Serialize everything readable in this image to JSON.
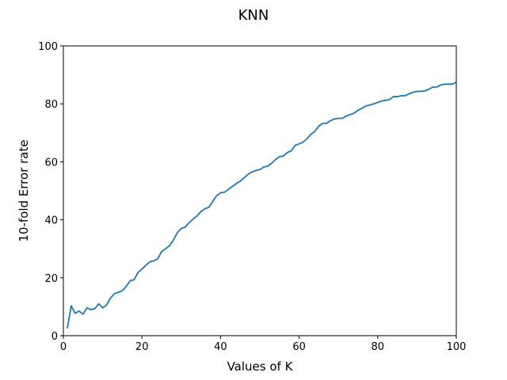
{
  "chart_data": {
    "type": "line",
    "title": "KNN",
    "xlabel": "Values of K",
    "ylabel": "10-fold Error rate",
    "xlim": [
      0,
      100
    ],
    "ylim": [
      0,
      100
    ],
    "xticks": [
      0,
      20,
      40,
      60,
      80,
      100
    ],
    "yticks": [
      0,
      20,
      40,
      60,
      80,
      100
    ],
    "grid": false,
    "series": [
      {
        "color": "#1f77b4",
        "x": [
          1,
          2,
          3,
          4,
          5,
          6,
          7,
          8,
          9,
          10,
          11,
          12,
          13,
          14,
          15,
          16,
          17,
          18,
          19,
          20,
          21,
          22,
          23,
          24,
          25,
          26,
          27,
          28,
          29,
          30,
          31,
          32,
          33,
          34,
          35,
          36,
          37,
          38,
          39,
          40,
          41,
          42,
          43,
          44,
          45,
          46,
          47,
          48,
          49,
          50,
          51,
          52,
          53,
          54,
          55,
          56,
          57,
          58,
          59,
          60,
          61,
          62,
          63,
          64,
          65,
          66,
          67,
          68,
          69,
          70,
          71,
          72,
          73,
          74,
          75,
          76,
          77,
          78,
          79,
          80,
          81,
          82,
          83,
          84,
          85,
          86,
          87,
          88,
          89,
          90,
          91,
          92,
          93,
          94,
          95,
          96,
          97,
          98,
          99,
          100
        ],
        "y": [
          2.5,
          10.3,
          7.7,
          8.5,
          7.4,
          9.6,
          9.0,
          9.3,
          11.0,
          9.6,
          10.6,
          13.0,
          14.5,
          15.0,
          15.5,
          17.0,
          19.0,
          19.3,
          21.8,
          23.0,
          24.3,
          25.5,
          25.8,
          26.5,
          29.0,
          30.0,
          31.0,
          33.0,
          35.5,
          37.0,
          37.5,
          39.0,
          40.2,
          41.3,
          42.8,
          43.8,
          44.3,
          46.3,
          48.3,
          49.3,
          49.5,
          50.5,
          51.5,
          52.5,
          53.3,
          54.5,
          55.7,
          56.5,
          57.0,
          57.3,
          58.2,
          58.5,
          59.5,
          60.8,
          61.8,
          62.0,
          63.2,
          63.8,
          65.7,
          66.2,
          66.8,
          68.0,
          69.5,
          70.5,
          72.3,
          73.3,
          73.3,
          74.2,
          74.8,
          75.0,
          75.0,
          75.8,
          76.3,
          76.8,
          77.8,
          78.5,
          79.3,
          79.6,
          80.0,
          80.5,
          81.0,
          81.2,
          81.5,
          82.5,
          82.5,
          82.8,
          82.8,
          83.5,
          84.0,
          84.3,
          84.3,
          84.5,
          85.0,
          85.8,
          85.8,
          86.5,
          86.8,
          86.8,
          86.8,
          87.5
        ]
      }
    ]
  }
}
